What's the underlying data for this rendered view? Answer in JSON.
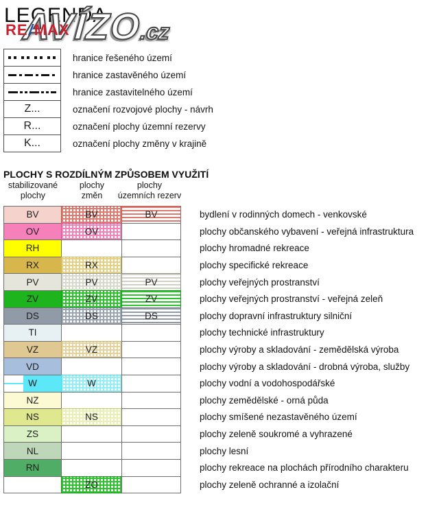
{
  "page": {
    "title": "LEGENDA"
  },
  "watermark": {
    "remax_pre": "RE",
    "remax_slash": "/",
    "remax_post": "MAX",
    "remax_color": "#c8202f",
    "slash_color": "#1c4da1",
    "avizo": "AVÍZO",
    "avizo_suffix": ".cz"
  },
  "boundary_legend": {
    "items": [
      {
        "type": "dotted",
        "symbol": "",
        "label": "hranice řešeného území"
      },
      {
        "type": "dashdot",
        "symbol": "",
        "label": "hranice zastavěného území"
      },
      {
        "type": "dashdotdot",
        "symbol": "",
        "label": "hranice zastavitelného území"
      },
      {
        "type": "text",
        "symbol": "Z...",
        "label": "označení rozvojové plochy - návrh"
      },
      {
        "type": "text",
        "symbol": "R...",
        "label": "označení plochy územní rezervy"
      },
      {
        "type": "text",
        "symbol": "K...",
        "label": "označení plochy změny v krajině"
      }
    ]
  },
  "land_use": {
    "section_title": "PLOCHY S ROZDÍLNÝM ZPŮSOBEM VYUŽITÍ",
    "column_headers": [
      "stabilizované\nplochy",
      "plochy\nzměn",
      "plochy\núzemních rezerv"
    ],
    "rows": [
      {
        "code": "BV",
        "description": "bydlení v rodinných domech - venkovské",
        "fill": "#f5d2cb",
        "change": "grid",
        "change_color": "#e0796e",
        "change_border": "#c4544a",
        "reserve": "stripes",
        "reserve_color": "#dd796e",
        "reserve_border": "#c4544a",
        "stable_label": true,
        "change_label": true,
        "reserve_label": true
      },
      {
        "code": "OV",
        "description": "plochy občanského vybavení - veřejná infrastruktura",
        "fill": "#f680ba",
        "change": "grid",
        "change_color": "#f382b9",
        "change_border": "#d6569c",
        "reserve": "none",
        "stable_label": true,
        "change_label": true,
        "reserve_label": false
      },
      {
        "code": "RH",
        "description": "plochy hromadné rekreace",
        "fill": "#ffff00",
        "change": "none",
        "reserve": "none",
        "stable_label": true,
        "change_label": false,
        "reserve_label": false
      },
      {
        "code": "RX",
        "description": "plochy specifické rekreace",
        "fill": "#d7b74b",
        "change": "grid",
        "change_color": "#e6d084",
        "change_border": "#cfb557",
        "reserve": "none",
        "stable_label": true,
        "change_label": true,
        "reserve_label": false
      },
      {
        "code": "PV",
        "description": "plochy veřejných prostranství",
        "fill": "#e5e5dc",
        "change": "grid",
        "change_color": "#d8d9cd",
        "change_border": "#9b9b91",
        "reserve": "stripes",
        "reserve_color": "#cfcfc3",
        "reserve_border": "#8f8f85",
        "stable_label": true,
        "change_label": true,
        "reserve_label": true
      },
      {
        "code": "ZV",
        "description": "plochy veřejných prostranství - veřejná zeleň",
        "fill": "#1db41d",
        "change": "grid",
        "change_color": "#2cc42c",
        "change_border": "#0e9a0e",
        "reserve": "stripes",
        "reserve_color": "#2cc42c",
        "reserve_border": "#0e9a0e",
        "stable_label": true,
        "change_label": true,
        "reserve_label": true
      },
      {
        "code": "DS",
        "description": "plochy dopravní infrastruktury silniční",
        "fill": "#919ba7",
        "change": "grid",
        "change_color": "#9aa5b1",
        "change_border": "#6e7986",
        "reserve": "stripes",
        "reserve_color": "#919ba7",
        "reserve_border": "#6e7986",
        "stable_label": true,
        "change_label": true,
        "reserve_label": true
      },
      {
        "code": "TI",
        "description": "plochy technické infrastruktury",
        "fill": "#e7f0f3",
        "change": "none",
        "reserve": "none",
        "stable_label": true,
        "change_label": false,
        "reserve_label": false
      },
      {
        "code": "VZ",
        "description": "plochy výroby a skladování - zemědělská výroba",
        "fill": "#e0c893",
        "change": "grid",
        "change_color": "#e6d29c",
        "change_border": "#c8ad64",
        "reserve": "none",
        "stable_label": true,
        "change_label": true,
        "reserve_label": false
      },
      {
        "code": "VD",
        "description": "plochy výroby a skladování -  drobná výroba, služby",
        "fill": "#a7bfdc",
        "change": "none",
        "reserve": "none",
        "stable_label": true,
        "change_label": false,
        "reserve_label": false
      },
      {
        "code": "W",
        "description": "plochy vodní a vodohospodářské",
        "fill": "#5ce8f8",
        "water_split": true,
        "change": "grid",
        "change_color": "#8feef6",
        "change_border": "#4ad4e6",
        "reserve": "none",
        "stable_label": true,
        "change_label": true,
        "reserve_label": false
      },
      {
        "code": "NZ",
        "description": "plochy zemědělské - orná půda",
        "fill": "#fbfad3",
        "change": "none",
        "reserve": "none",
        "stable_label": true,
        "change_label": false,
        "reserve_label": false
      },
      {
        "code": "NS",
        "description": "plochy smíšené nezastavěného území",
        "fill": "#dfe88e",
        "change": "grid",
        "change_color": "#eaf0b4",
        "change_border": "#c0cc62",
        "reserve": "none",
        "stable_label": true,
        "change_label": true,
        "reserve_label": false
      },
      {
        "code": "ZS",
        "description": "plochy zeleně soukromé a vyhrazené",
        "fill": "#d9f1c4",
        "change": "none",
        "reserve": "none",
        "stable_label": true,
        "change_label": false,
        "reserve_label": false
      },
      {
        "code": "NL",
        "description": "plochy lesní",
        "fill": "#bed7b8",
        "change": "none",
        "reserve": "none",
        "stable_label": true,
        "change_label": false,
        "reserve_label": false
      },
      {
        "code": "RN",
        "description": "plochy rekreace na plochách přírodního charakteru",
        "fill": "#50ad66",
        "change": "none",
        "reserve": "none",
        "stable_label": true,
        "change_label": false,
        "reserve_label": false
      },
      {
        "code": "ZO",
        "description": "plochy zeleně ochranné a izolační",
        "fill": null,
        "change": "grid",
        "change_color": "#2cc42c",
        "change_border": "#0e9a0e",
        "reserve": "none",
        "stable_label": false,
        "change_label": true,
        "reserve_label": false
      }
    ]
  }
}
